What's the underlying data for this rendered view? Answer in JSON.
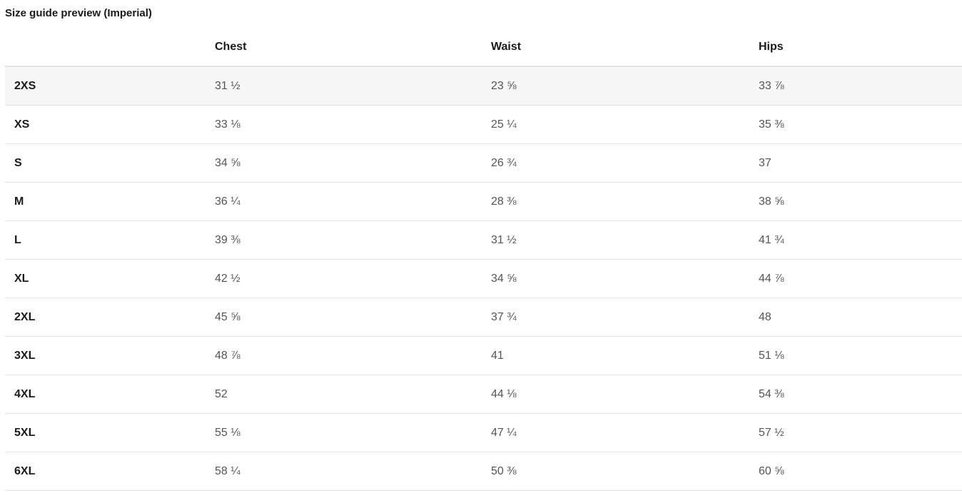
{
  "title": "Size guide preview (Imperial)",
  "headers": [
    "",
    "Chest",
    "Waist",
    "Hips"
  ],
  "rows": [
    {
      "size": "2XS",
      "chest": "31 ½",
      "waist": "23 ⅝",
      "hips": "33 ⅞"
    },
    {
      "size": "XS",
      "chest": "33 ⅛",
      "waist": "25 ¼",
      "hips": "35 ⅜"
    },
    {
      "size": "S",
      "chest": "34 ⅝",
      "waist": "26 ¾",
      "hips": "37"
    },
    {
      "size": "M",
      "chest": "36 ¼",
      "waist": "28 ⅜",
      "hips": "38 ⅝"
    },
    {
      "size": "L",
      "chest": "39 ⅜",
      "waist": "31 ½",
      "hips": "41 ¾"
    },
    {
      "size": "XL",
      "chest": "42 ½",
      "waist": "34 ⅝",
      "hips": "44 ⅞"
    },
    {
      "size": "2XL",
      "chest": "45 ⅝",
      "waist": "37 ¾",
      "hips": "48"
    },
    {
      "size": "3XL",
      "chest": "48 ⅞",
      "waist": "41",
      "hips": "51 ⅛"
    },
    {
      "size": "4XL",
      "chest": "52",
      "waist": "44 ⅛",
      "hips": "54 ⅜"
    },
    {
      "size": "5XL",
      "chest": "55 ⅛",
      "waist": "47 ¼",
      "hips": "57 ½"
    },
    {
      "size": "6XL",
      "chest": "58 ¼",
      "waist": "50 ⅜",
      "hips": "60 ⅝"
    }
  ]
}
